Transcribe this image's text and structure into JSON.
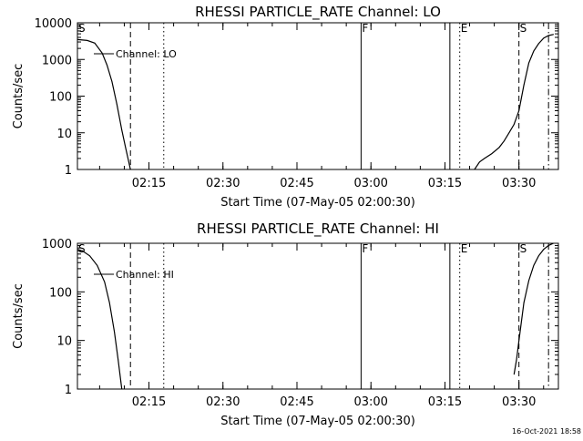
{
  "chart_data": [
    {
      "type": "line",
      "title": "RHESSI PARTICLE_RATE Channel: LO",
      "xlabel": "Start Time (07-May-05 02:00:30)",
      "ylabel": "Counts/sec",
      "y_scale": "log",
      "ylim": [
        1,
        10000
      ],
      "xlim": [
        "02:00:30",
        "03:38:00"
      ],
      "y_ticks": [
        "1",
        "10",
        "100",
        "1000",
        "10000"
      ],
      "x_ticks": [
        "02:15",
        "02:30",
        "02:45",
        "03:00",
        "03:15",
        "03:30"
      ],
      "legend": "Channel: LO",
      "grid": false,
      "series": [
        {
          "name": "Channel: LO",
          "segments": [
            [
              [
                "02:00:30",
                3500
              ],
              [
                "02:02:30",
                3300
              ],
              [
                "02:04:00",
                2800
              ],
              [
                "02:05:30",
                1500
              ],
              [
                "02:06:30",
                700
              ],
              [
                "02:07:30",
                250
              ],
              [
                "02:08:30",
                60
              ],
              [
                "02:09:30",
                12
              ],
              [
                "02:10:15",
                4
              ],
              [
                "02:10:45",
                2
              ],
              [
                "02:11:15",
                1
              ]
            ],
            [
              [
                "03:21:00",
                1
              ],
              [
                "03:22:00",
                1.6
              ],
              [
                "03:23:00",
                2
              ],
              [
                "03:24:30",
                2.7
              ],
              [
                "03:26:00",
                4
              ],
              [
                "03:27:00",
                6
              ],
              [
                "03:28:00",
                10
              ],
              [
                "03:29:00",
                17
              ],
              [
                "03:30:00",
                40
              ],
              [
                "03:31:00",
                200
              ],
              [
                "03:32:00",
                800
              ],
              [
                "03:33:00",
                1700
              ],
              [
                "03:34:00",
                2700
              ],
              [
                "03:35:00",
                3800
              ],
              [
                "03:36:00",
                4500
              ],
              [
                "03:37:00",
                4800
              ]
            ]
          ]
        }
      ],
      "markers": [
        {
          "label": "S",
          "time": "02:00:30",
          "style": "solid"
        },
        {
          "label": "",
          "time": "02:11:15",
          "style": "dashed"
        },
        {
          "label": "",
          "time": "02:18:00",
          "style": "dotted"
        },
        {
          "label": "F",
          "time": "02:58:00",
          "style": "solid"
        },
        {
          "label": "",
          "time": "03:16:00",
          "style": "solid"
        },
        {
          "label": "E",
          "time": "03:18:00",
          "style": "dotted"
        },
        {
          "label": "S",
          "time": "03:30:00",
          "style": "dashed"
        },
        {
          "label": "",
          "time": "03:36:00",
          "style": "dashdot"
        }
      ]
    },
    {
      "type": "line",
      "title": "RHESSI PARTICLE_RATE Channel: HI",
      "xlabel": "Start Time (07-May-05 02:00:30)",
      "ylabel": "Counts/sec",
      "y_scale": "log",
      "ylim": [
        1,
        1000
      ],
      "xlim": [
        "02:00:30",
        "03:38:00"
      ],
      "y_ticks": [
        "1",
        "10",
        "100",
        "1000"
      ],
      "x_ticks": [
        "02:15",
        "02:30",
        "02:45",
        "03:00",
        "03:15",
        "03:30"
      ],
      "legend": "Channel: HI",
      "grid": false,
      "series": [
        {
          "name": "Channel: HI",
          "segments": [
            [
              [
                "02:00:30",
                750
              ],
              [
                "02:01:30",
                700
              ],
              [
                "02:03:00",
                550
              ],
              [
                "02:04:30",
                350
              ],
              [
                "02:06:00",
                160
              ],
              [
                "02:07:00",
                60
              ],
              [
                "02:08:00",
                15
              ],
              [
                "02:08:45",
                4
              ],
              [
                "02:09:30",
                1
              ]
            ],
            [
              [
                "03:29:00",
                2
              ],
              [
                "03:29:30",
                4
              ],
              [
                "03:30:00",
                10
              ],
              [
                "03:31:00",
                60
              ],
              [
                "03:32:00",
                170
              ],
              [
                "03:33:00",
                350
              ],
              [
                "03:34:00",
                550
              ],
              [
                "03:35:00",
                750
              ],
              [
                "03:36:00",
                900
              ],
              [
                "03:37:00",
                1000
              ]
            ]
          ]
        }
      ],
      "markers": [
        {
          "label": "S",
          "time": "02:00:30",
          "style": "solid"
        },
        {
          "label": "",
          "time": "02:11:15",
          "style": "dashed"
        },
        {
          "label": "",
          "time": "02:18:00",
          "style": "dotted"
        },
        {
          "label": "F",
          "time": "02:58:00",
          "style": "solid"
        },
        {
          "label": "",
          "time": "03:16:00",
          "style": "solid"
        },
        {
          "label": "E",
          "time": "03:18:00",
          "style": "dotted"
        },
        {
          "label": "S",
          "time": "03:30:00",
          "style": "dashed"
        },
        {
          "label": "",
          "time": "03:36:00",
          "style": "dashdot"
        }
      ]
    }
  ],
  "footer": {
    "timestamp": "16-Oct-2021 18:58"
  }
}
